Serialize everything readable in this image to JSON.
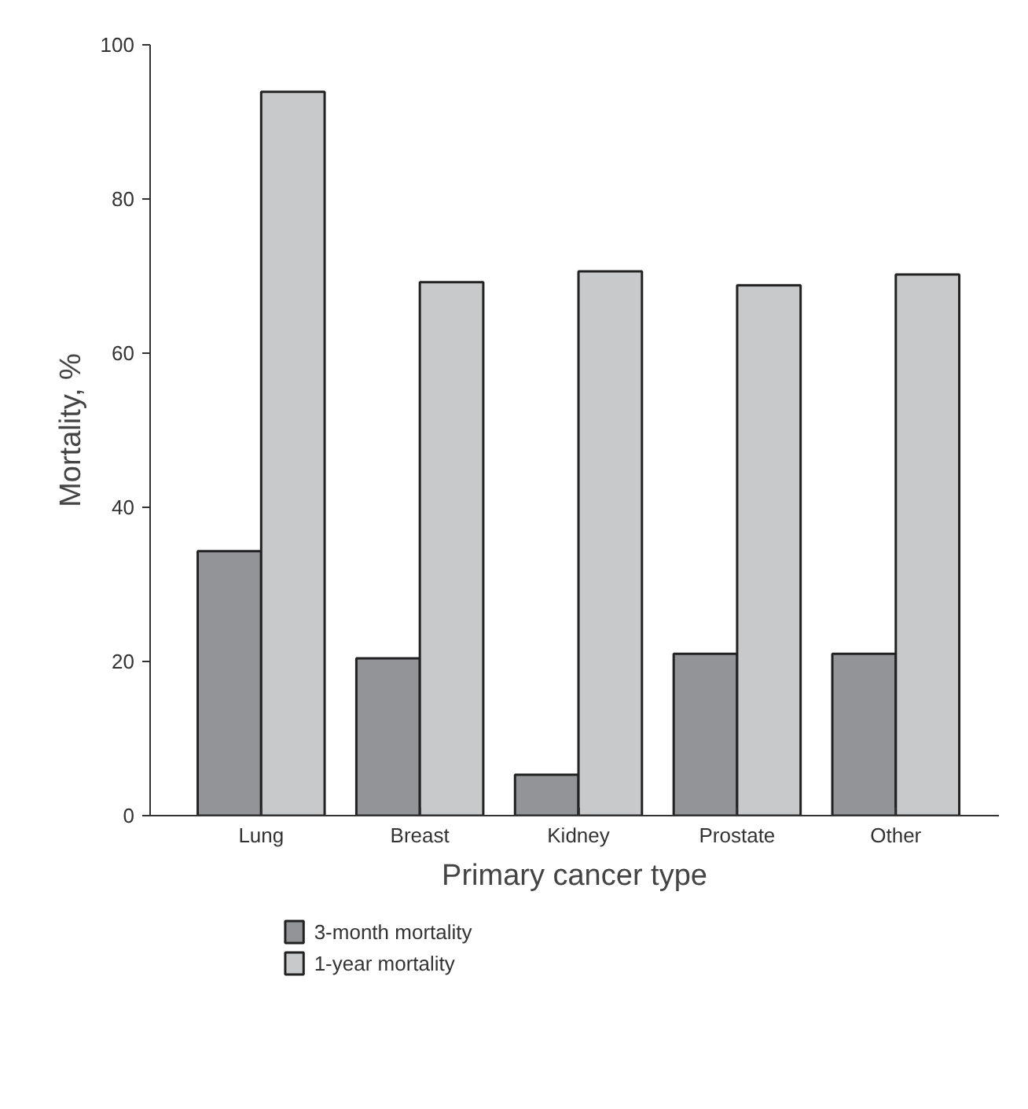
{
  "chart_data": {
    "type": "bar",
    "xlabel": "Primary cancer type",
    "ylabel": "Mortality, %",
    "categories": [
      "Lung",
      "Breast",
      "Kidney",
      "Prostate",
      "Other"
    ],
    "series": [
      {
        "name": "3-month mortality",
        "color": "#939498",
        "values": [
          34.3,
          20.4,
          5.3,
          21.0,
          21.0
        ]
      },
      {
        "name": "1-year mortality",
        "color": "#c8c9cb",
        "values": [
          93.9,
          69.2,
          70.6,
          68.8,
          70.2
        ]
      }
    ],
    "ylim": [
      0,
      100
    ],
    "yticks": [
      0,
      20,
      40,
      60,
      80,
      100
    ],
    "grid": false,
    "legend": "bottom left"
  }
}
